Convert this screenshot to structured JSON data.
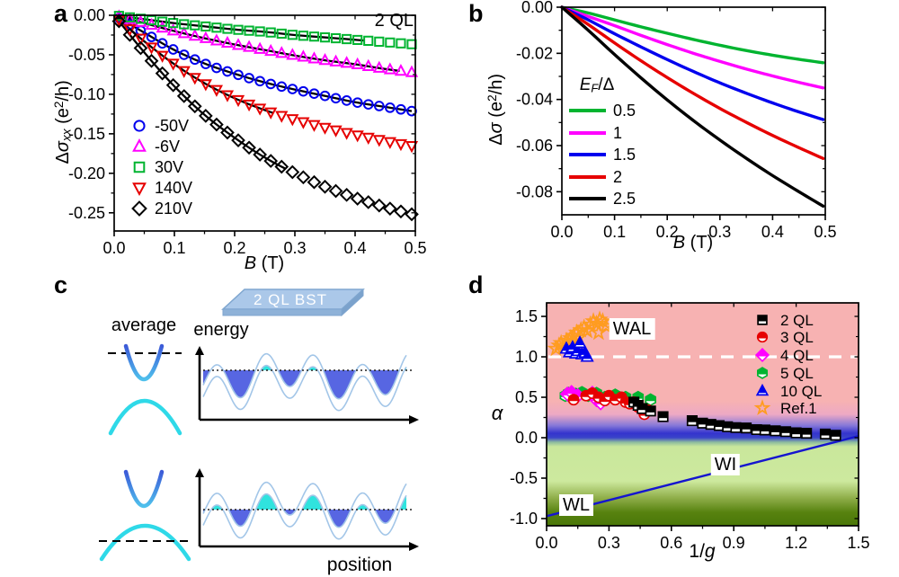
{
  "panels": {
    "a": {
      "letter": "a",
      "annotation": "2 QL",
      "x_title": {
        "var": "B",
        "unit": " (T)"
      },
      "y_title": {
        "delta": "Δ",
        "sigma": "σ",
        "sub": "xx",
        "pre": " (e",
        "sup": "2",
        "post": "/h)"
      }
    },
    "b": {
      "letter": "b",
      "x_title": {
        "var": "B",
        "unit": " (T)"
      },
      "y_title": {
        "delta": "Δ",
        "sigma": "σ",
        "sub": "",
        "pre": " (e",
        "sup": "2",
        "post": "/h)"
      },
      "legend_title": {
        "var": "E",
        "sub": "F",
        "post": "/Δ"
      }
    },
    "c": {
      "letter": "c",
      "slab_label": "2 QL BST",
      "average_label": "average",
      "energy_label": "energy",
      "position_label": "position"
    },
    "d": {
      "letter": "d",
      "x_title": {
        "pre": "1/",
        "var": "g"
      },
      "y_title": {
        "var": "α"
      },
      "region_labels": {
        "wal": "WAL",
        "wi": "WI",
        "wl": "WL"
      }
    }
  },
  "chart_data": [
    {
      "id": "a",
      "type": "scatter",
      "annotation": "2 QL",
      "xlabel": "B (T)",
      "ylabel": "Δσxx (e²/h)",
      "xlim": [
        0,
        0.5
      ],
      "ylim": [
        -0.273,
        0
      ],
      "xticks": [
        "0.0",
        "0.1",
        "0.2",
        "0.3",
        "0.4",
        "0.5"
      ],
      "yticks": [
        "0.00",
        "-0.05",
        "-0.10",
        "-0.15",
        "-0.20",
        "-0.25"
      ],
      "x": [
        0,
        0.05,
        0.1,
        0.15,
        0.2,
        0.25,
        0.3,
        0.35,
        0.4,
        0.45,
        0.5
      ],
      "fit_line_color": "#000000",
      "series": [
        {
          "name": "-50V",
          "marker": "circle",
          "color": "#0000EE",
          "fit_end": 0.5,
          "values": [
            0,
            -0.022,
            -0.044,
            -0.061,
            -0.074,
            -0.085,
            -0.094,
            -0.102,
            -0.11,
            -0.116,
            -0.122
          ]
        },
        {
          "name": "-6V",
          "marker": "triangle-up",
          "color": "#FF00FF",
          "fit_end": 0.48,
          "values": [
            0,
            -0.01,
            -0.02,
            -0.029,
            -0.037,
            -0.044,
            -0.051,
            -0.057,
            -0.062,
            -0.068,
            -0.073
          ]
        },
        {
          "name": "30V",
          "marker": "square",
          "color": "#00B430",
          "fit_end": 0.42,
          "values": [
            0,
            -0.005,
            -0.01,
            -0.014,
            -0.018,
            -0.021,
            -0.025,
            -0.028,
            -0.031,
            -0.034,
            -0.037
          ]
        },
        {
          "name": "140V",
          "marker": "triangle-down",
          "color": "#E60000",
          "fit_end": 0.27,
          "values": [
            0,
            -0.033,
            -0.062,
            -0.086,
            -0.105,
            -0.12,
            -0.132,
            -0.142,
            -0.151,
            -0.159,
            -0.166
          ]
        },
        {
          "name": "210V",
          "marker": "diamond",
          "color": "#000000",
          "fit_end": 0.29,
          "values": [
            0,
            -0.047,
            -0.09,
            -0.126,
            -0.155,
            -0.18,
            -0.2,
            -0.217,
            -0.231,
            -0.243,
            -0.253
          ]
        }
      ]
    },
    {
      "id": "b",
      "type": "line",
      "legend_title": "EF/Δ",
      "xlabel": "B (T)",
      "ylabel": "Δσ (e²/h)",
      "xlim": [
        0,
        0.5
      ],
      "ylim": [
        -0.09,
        0
      ],
      "xticks": [
        "0.0",
        "0.1",
        "0.2",
        "0.3",
        "0.4",
        "0.5"
      ],
      "yticks": [
        "0.00",
        "-0.02",
        "-0.04",
        "-0.06",
        "-0.08"
      ],
      "x": [
        0,
        0.05,
        0.1,
        0.15,
        0.2,
        0.25,
        0.3,
        0.35,
        0.4,
        0.45,
        0.5
      ],
      "series": [
        {
          "name": "0.5",
          "color": "#00B430",
          "values": [
            0,
            -0.0025,
            -0.0055,
            -0.0085,
            -0.0113,
            -0.014,
            -0.0165,
            -0.0188,
            -0.0208,
            -0.0226,
            -0.0242
          ]
        },
        {
          "name": "1",
          "color": "#FF00FF",
          "values": [
            0,
            -0.004,
            -0.008,
            -0.0122,
            -0.0162,
            -0.02,
            -0.0235,
            -0.0268,
            -0.0298,
            -0.0326,
            -0.0352
          ]
        },
        {
          "name": "1.5",
          "color": "#0000EE",
          "values": [
            0,
            -0.0055,
            -0.0115,
            -0.0172,
            -0.0227,
            -0.0279,
            -0.0328,
            -0.0373,
            -0.0415,
            -0.0454,
            -0.049
          ]
        },
        {
          "name": "2",
          "color": "#E60000",
          "values": [
            0,
            -0.0075,
            -0.0155,
            -0.0232,
            -0.0305,
            -0.0374,
            -0.0439,
            -0.0499,
            -0.0556,
            -0.0609,
            -0.066
          ]
        },
        {
          "name": "2.5",
          "color": "#000000",
          "values": [
            0,
            -0.01,
            -0.0205,
            -0.0306,
            -0.0402,
            -0.0492,
            -0.0576,
            -0.0655,
            -0.073,
            -0.08,
            -0.0868
          ]
        }
      ]
    },
    {
      "id": "d",
      "type": "scatter",
      "xlabel": "1/g",
      "ylabel": "α",
      "xlim": [
        0,
        1.5
      ],
      "ylim": [
        -1.089,
        1.667
      ],
      "xticks": [
        "0.0",
        "0.3",
        "0.6",
        "0.9",
        "1.2",
        "1.5"
      ],
      "yticks": [
        "-1.0",
        "-0.5",
        "0.0",
        "0.5",
        "1.0",
        "1.5"
      ],
      "dashed_line_y": 1.0,
      "dashed_line_color": "#FFFFFF",
      "boundary_line": {
        "x": [
          0,
          1.5
        ],
        "y": [
          -0.97,
          0.02
        ],
        "color": "#1515CF"
      },
      "region_colors": {
        "wal_pink": "#F7B2B2",
        "band_blue": "#3434CE",
        "wi_green": "#CDE99E",
        "wl_dark_green": "#4A7708"
      },
      "series": [
        {
          "name": "2 QL",
          "marker": "half-square",
          "color": "#000000",
          "points": [
            [
              0.42,
              0.44
            ],
            [
              0.44,
              0.4
            ],
            [
              0.46,
              0.36
            ],
            [
              0.5,
              0.33
            ],
            [
              0.56,
              0.26
            ],
            [
              0.7,
              0.21
            ],
            [
              0.75,
              0.18
            ],
            [
              0.79,
              0.165
            ],
            [
              0.83,
              0.15
            ],
            [
              0.87,
              0.135
            ],
            [
              0.91,
              0.125
            ],
            [
              0.96,
              0.12
            ],
            [
              1.01,
              0.1
            ],
            [
              1.05,
              0.095
            ],
            [
              1.1,
              0.085
            ],
            [
              1.15,
              0.075
            ],
            [
              1.2,
              0.06
            ],
            [
              1.25,
              0.055
            ],
            [
              1.34,
              0.045
            ],
            [
              1.39,
              0.03
            ]
          ]
        },
        {
          "name": "3 QL",
          "marker": "half-circle",
          "color": "#E60000",
          "points": [
            [
              0.13,
              0.47
            ],
            [
              0.19,
              0.52
            ],
            [
              0.22,
              0.55
            ],
            [
              0.25,
              0.5
            ],
            [
              0.28,
              0.46
            ],
            [
              0.3,
              0.52
            ],
            [
              0.33,
              0.47
            ],
            [
              0.36,
              0.5
            ],
            [
              0.38,
              0.44
            ],
            [
              0.4,
              0.42
            ],
            [
              0.42,
              0.44
            ],
            [
              0.44,
              0.38
            ],
            [
              0.47,
              0.29
            ],
            [
              0.49,
              0.34
            ]
          ]
        },
        {
          "name": "4 QL",
          "marker": "half-diamond",
          "color": "#FF00FF",
          "points": [
            [
              0.1,
              0.54
            ],
            [
              0.12,
              0.56
            ],
            [
              0.15,
              0.52
            ],
            [
              0.22,
              0.55
            ],
            [
              0.24,
              0.47
            ],
            [
              0.26,
              0.43
            ]
          ]
        },
        {
          "name": "5 QL",
          "marker": "half-hexagon",
          "color": "#00B430",
          "points": [
            [
              0.09,
              0.52
            ],
            [
              0.105,
              0.55
            ],
            [
              0.12,
              0.5
            ],
            [
              0.14,
              0.54
            ],
            [
              0.17,
              0.56
            ],
            [
              0.2,
              0.52
            ],
            [
              0.24,
              0.55
            ],
            [
              0.28,
              0.5
            ],
            [
              0.33,
              0.53
            ],
            [
              0.38,
              0.5
            ],
            [
              0.44,
              0.5
            ],
            [
              0.5,
              0.47
            ]
          ]
        },
        {
          "name": "10 QL",
          "marker": "half-triangle",
          "color": "#0000EE",
          "points": [
            [
              0.095,
              1.1
            ],
            [
              0.11,
              1.055
            ],
            [
              0.125,
              1.115
            ],
            [
              0.14,
              1.04
            ],
            [
              0.15,
              1.07
            ],
            [
              0.16,
              1.17
            ],
            [
              0.17,
              1.03
            ],
            [
              0.185,
              1.05
            ],
            [
              0.195,
              1.0
            ]
          ]
        },
        {
          "name": "Ref.1",
          "marker": "star",
          "color": "#FF9C20",
          "points": [
            [
              0.045,
              1.1
            ],
            [
              0.06,
              1.14
            ],
            [
              0.07,
              1.17
            ],
            [
              0.085,
              1.13
            ],
            [
              0.095,
              1.2
            ],
            [
              0.105,
              1.16
            ],
            [
              0.115,
              1.23
            ],
            [
              0.125,
              1.19
            ],
            [
              0.13,
              1.26
            ],
            [
              0.145,
              1.3
            ],
            [
              0.155,
              1.24
            ],
            [
              0.165,
              1.33
            ],
            [
              0.18,
              1.36
            ],
            [
              0.195,
              1.32
            ],
            [
              0.21,
              1.4
            ],
            [
              0.225,
              1.44
            ],
            [
              0.24,
              1.41
            ],
            [
              0.255,
              1.46
            ],
            [
              0.27,
              1.44
            ],
            [
              0.285,
              1.38
            ],
            [
              0.25,
              1.3
            ]
          ]
        }
      ]
    },
    {
      "id": "c",
      "type": "diagram",
      "description": "band-fluctuation / puddle schematic",
      "slab_label": "2 QL BST",
      "labels": [
        "average",
        "energy",
        "position"
      ],
      "colors": {
        "electron_fill": "#5766E2",
        "hole_fill": "#30E3DE",
        "envelope": "#A3C6E8",
        "conduction_band_top": "#3C5BD8",
        "conduction_band_bottom": "#4FC0EC",
        "valence_band": "#2FD9E8",
        "slab_top": "#ABC8E9",
        "slab_front": "#8FB2D8"
      }
    }
  ]
}
